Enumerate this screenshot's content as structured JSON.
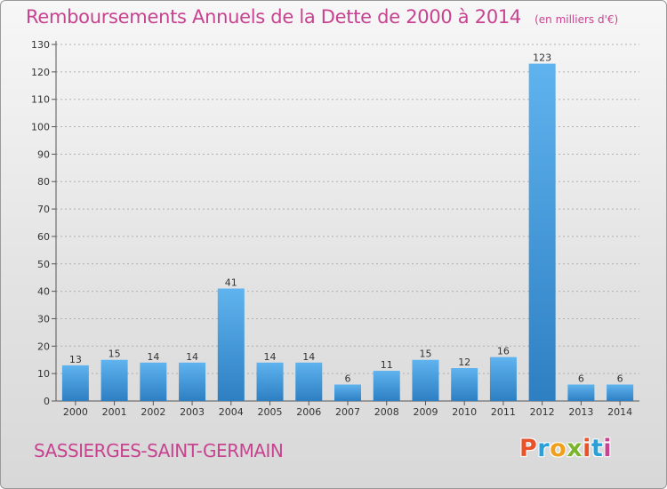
{
  "header": {
    "title": "Remboursements Annuels de la Dette de 2000 à 2014",
    "unit": "(en milliers d'€)"
  },
  "footer": {
    "commune": "SASSIERGES-SAINT-GERMAIN",
    "logo_text": "Proxiti",
    "logo_colors": [
      "#e8532a",
      "#2a9fd8",
      "#f0a020",
      "#7ab52c",
      "#e8532a",
      "#2a9fd8",
      "#c8438f"
    ]
  },
  "colors": {
    "title": "#c8438f",
    "bar_top": "#5fb3ee",
    "bar_bottom": "#2d7fc2",
    "grid": "#b0b0b0"
  },
  "chart_data": {
    "type": "bar",
    "categories": [
      "2000",
      "2001",
      "2002",
      "2003",
      "2004",
      "2005",
      "2006",
      "2007",
      "2008",
      "2009",
      "2010",
      "2011",
      "2012",
      "2013",
      "2014"
    ],
    "values": [
      13,
      15,
      14,
      14,
      41,
      14,
      14,
      6,
      11,
      15,
      12,
      16,
      123,
      6,
      6
    ],
    "ylim": [
      0,
      130
    ],
    "yticks": [
      0,
      10,
      20,
      30,
      40,
      50,
      60,
      70,
      80,
      90,
      100,
      110,
      120,
      130
    ],
    "grid": true,
    "data_labels": true
  }
}
